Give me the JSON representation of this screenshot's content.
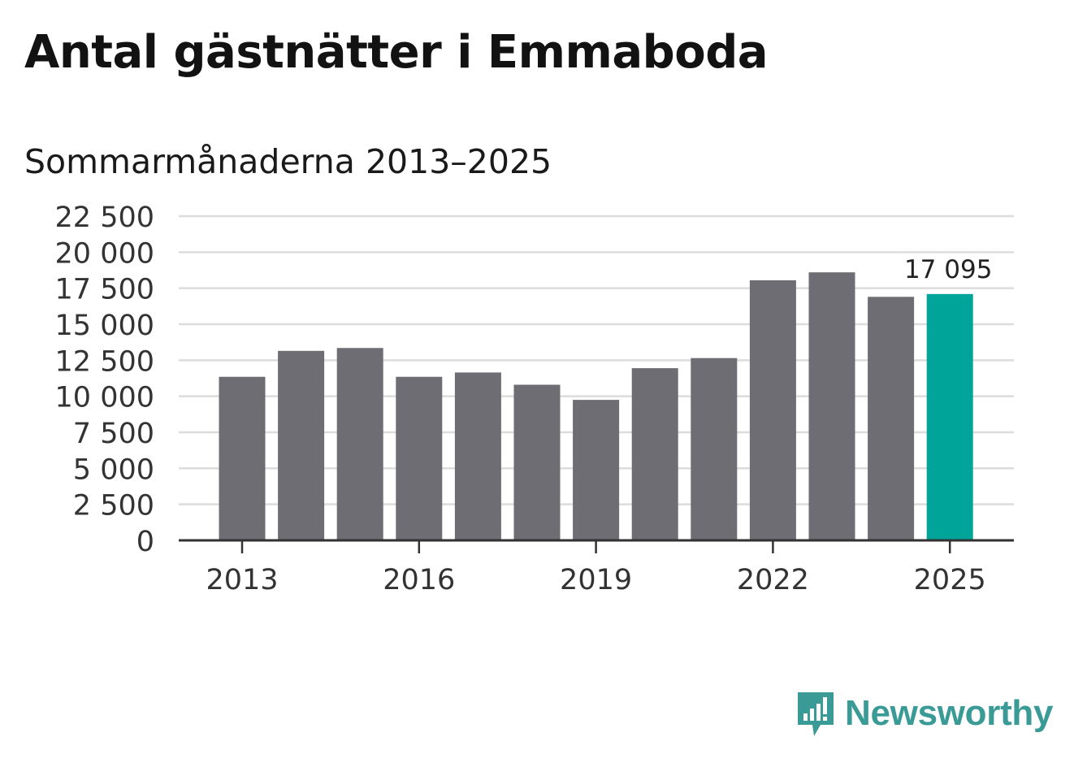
{
  "header": {
    "title": "Antal gästnätter i Emmaboda",
    "subtitle": "Sommarmånaderna 2013–2025"
  },
  "logo": {
    "text": "Newsworthy",
    "icon": "newsworthy-bar-icon",
    "color": "#3a9a96"
  },
  "colors": {
    "bar": "#6e6d73",
    "highlight": "#00a499",
    "grid": "#dcdcdc",
    "axis": "#333333"
  },
  "chart_data": {
    "type": "bar",
    "categories": [
      "2013",
      "2014",
      "2015",
      "2016",
      "2017",
      "2018",
      "2019",
      "2020",
      "2021",
      "2022",
      "2023",
      "2024",
      "2025"
    ],
    "values": [
      11350,
      13150,
      13350,
      11350,
      11650,
      10800,
      9750,
      11950,
      12650,
      18050,
      18600,
      16900,
      17095
    ],
    "highlight_index": 12,
    "data_labels": [
      {
        "index": 12,
        "text": "17 095"
      }
    ],
    "x_tick_labels": [
      "2013",
      "2016",
      "2019",
      "2022",
      "2025"
    ],
    "y_ticks": [
      0,
      2500,
      5000,
      7500,
      10000,
      12500,
      15000,
      17500,
      20000,
      22500
    ],
    "y_tick_labels": [
      "0",
      "2 500",
      "5 000",
      "7 500",
      "10 000",
      "12 500",
      "15 000",
      "17 500",
      "20 000",
      "22 500"
    ],
    "ylim": [
      0,
      22500
    ],
    "grid": true,
    "title": "Antal gästnätter i Emmaboda",
    "subtitle": "Sommarmånaderna 2013–2025",
    "xlabel": "",
    "ylabel": ""
  }
}
